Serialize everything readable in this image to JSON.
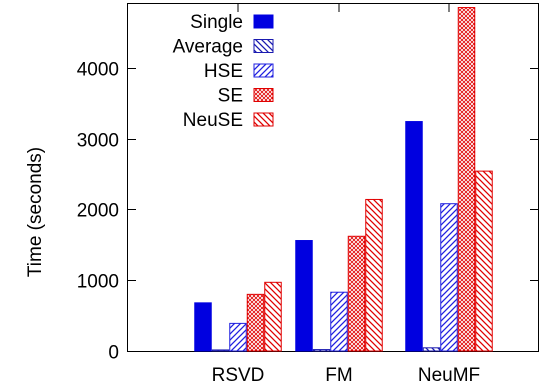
{
  "chart_data": {
    "type": "bar",
    "categories": [
      "RSVD",
      "FM",
      "NeuMF"
    ],
    "series": [
      {
        "name": "Single",
        "values": [
          680,
          1560,
          3240
        ],
        "color": "#0000e0",
        "pattern": "solid"
      },
      {
        "name": "Average",
        "values": [
          15,
          20,
          45
        ],
        "color": "#1a1ab0",
        "pattern": "hatch-back"
      },
      {
        "name": "HSE",
        "values": [
          390,
          830,
          2080
        ],
        "color": "#2020e0",
        "pattern": "hatch-fwd"
      },
      {
        "name": "SE",
        "values": [
          800,
          1620,
          4850
        ],
        "color": "#e00000",
        "pattern": "crosshatch"
      },
      {
        "name": "NeuSE",
        "values": [
          970,
          2140,
          2540
        ],
        "color": "#e00000",
        "pattern": "hatch-back-red"
      }
    ],
    "xlabel": "",
    "ylabel": "Time (seconds)",
    "ylim": [
      0,
      4900
    ],
    "yticks": [
      0,
      1000,
      2000,
      3000,
      4000
    ],
    "legend_position": "top-left",
    "grid": false
  }
}
